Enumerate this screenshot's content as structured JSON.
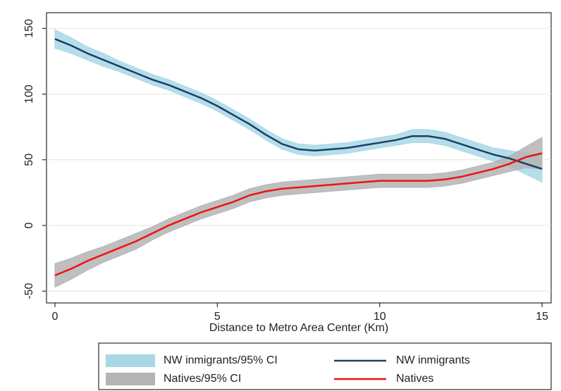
{
  "chart_data": {
    "type": "line",
    "x_label": "Distance to Metro Area Center (Km)",
    "x": [
      0,
      0.5,
      1,
      1.5,
      2,
      2.5,
      3,
      3.5,
      4,
      4.5,
      5,
      5.5,
      6,
      6.5,
      7,
      7.5,
      8,
      8.5,
      9,
      9.5,
      10,
      10.5,
      11,
      11.5,
      12,
      12.5,
      13,
      13.5,
      14,
      14.5,
      15
    ],
    "bands": [
      {
        "name": "NW inmigrants/95% CI",
        "color": "#a8d8e6",
        "upper": [
          149,
          143,
          136,
          131,
          125,
          120,
          115,
          111,
          106,
          101,
          95,
          88,
          81,
          73,
          66,
          62,
          61,
          62,
          63,
          65,
          67,
          69,
          73,
          73,
          71,
          67,
          63,
          59,
          57,
          55,
          53
        ],
        "lower": [
          135,
          131,
          126,
          121,
          117,
          112,
          107,
          103,
          98,
          93,
          87,
          80,
          73,
          65,
          58,
          54,
          53,
          54,
          55,
          57,
          59,
          61,
          63,
          63,
          61,
          57,
          53,
          49,
          45,
          39,
          33
        ]
      },
      {
        "name": "Natives/95% CI",
        "color": "#b4b4b4",
        "upper": [
          -29,
          -25,
          -20,
          -16,
          -11,
          -6,
          -1,
          5,
          10,
          15,
          19,
          23,
          28,
          31,
          33,
          34,
          35,
          36,
          37,
          38,
          39,
          39,
          39,
          39,
          40,
          42,
          45,
          48,
          53,
          60,
          67
        ],
        "lower": [
          -47,
          -41,
          -34,
          -28,
          -23,
          -18,
          -11,
          -5,
          0,
          5,
          9,
          13,
          18,
          21,
          23,
          24,
          25,
          26,
          27,
          28,
          29,
          29,
          29,
          29,
          30,
          32,
          35,
          38,
          41,
          44,
          43
        ]
      }
    ],
    "series": [
      {
        "name": "NW inmigrants",
        "color": "#1a3f66",
        "values": [
          142,
          137,
          131,
          126,
          121,
          116,
          111,
          107,
          102,
          97,
          91,
          84,
          77,
          69,
          62,
          58,
          57,
          58,
          59,
          61,
          63,
          65,
          68,
          68,
          66,
          62,
          58,
          54,
          51,
          47,
          43
        ]
      },
      {
        "name": "Natives",
        "color": "#ee1111",
        "values": [
          -38,
          -33,
          -27,
          -22,
          -17,
          -12,
          -6,
          0,
          5,
          10,
          14,
          18,
          23,
          26,
          28,
          29,
          30,
          31,
          32,
          33,
          34,
          34,
          34,
          34,
          35,
          37,
          40,
          43,
          47,
          52,
          55
        ]
      }
    ],
    "xlim": [
      -0.26,
      15.28
    ],
    "ylim": [
      -59,
      162
    ],
    "xticks": [
      0,
      5,
      10,
      15
    ],
    "yticks": [
      -50,
      0,
      50,
      100,
      150
    ],
    "grid": true
  }
}
